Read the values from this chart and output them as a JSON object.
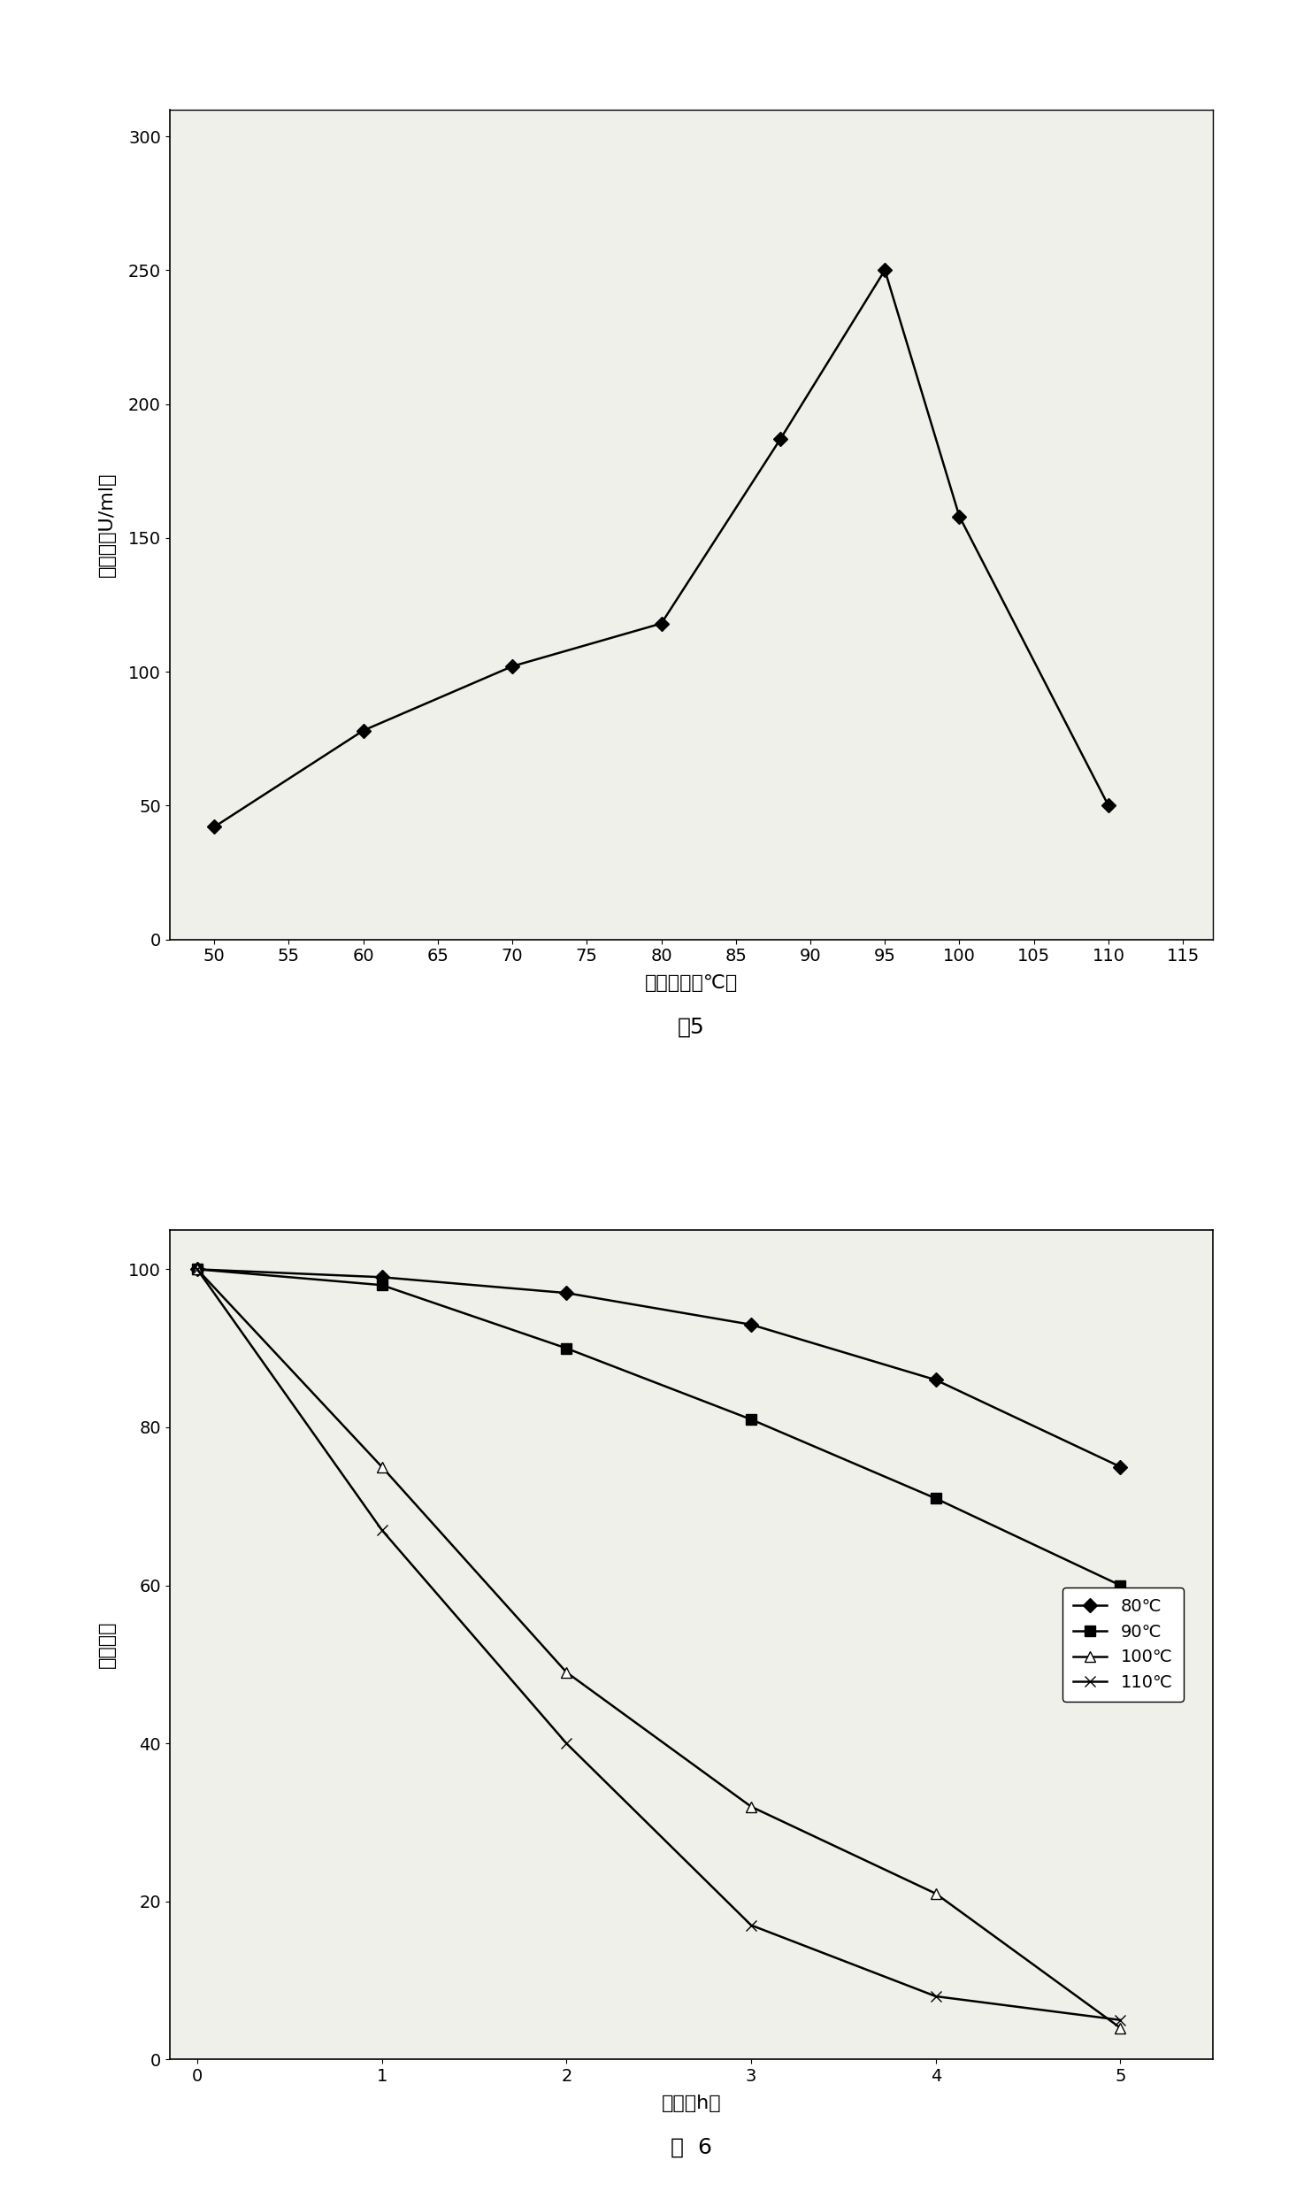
{
  "fig5": {
    "title": "图5",
    "x": [
      50,
      60,
      70,
      80,
      88,
      95,
      100,
      110
    ],
    "y": [
      42,
      78,
      102,
      118,
      187,
      250,
      158,
      50
    ],
    "xlabel": "作用温度（℃）",
    "ylabel": "酶活力（U/ml）",
    "xlim": [
      47,
      117
    ],
    "ylim": [
      0,
      310
    ],
    "xticks": [
      50,
      55,
      60,
      65,
      70,
      75,
      80,
      85,
      90,
      95,
      100,
      105,
      110,
      115
    ],
    "yticks": [
      0,
      50,
      100,
      150,
      200,
      250,
      300
    ],
    "marker": "D",
    "markersize": 8,
    "color": "black",
    "linewidth": 1.8
  },
  "fig6": {
    "title": "图  6",
    "xlabel": "时间（h）",
    "ylabel": "相对酶活",
    "xlim": [
      -0.15,
      5.5
    ],
    "ylim": [
      0,
      105
    ],
    "xticks": [
      0,
      1,
      2,
      3,
      4,
      5
    ],
    "yticks": [
      0,
      20,
      40,
      60,
      80,
      100
    ],
    "series": [
      {
        "label": "80℃",
        "x": [
          0,
          1,
          2,
          3,
          4,
          5
        ],
        "y": [
          100,
          99,
          97,
          93,
          86,
          75
        ],
        "marker": "D",
        "linestyle": "-",
        "color": "black",
        "markersize": 8,
        "markerfacecolor": "black"
      },
      {
        "label": "90℃",
        "x": [
          0,
          1,
          2,
          3,
          4,
          5
        ],
        "y": [
          100,
          98,
          90,
          81,
          71,
          60
        ],
        "marker": "s",
        "linestyle": "-",
        "color": "black",
        "markersize": 8,
        "markerfacecolor": "black"
      },
      {
        "label": "100℃",
        "x": [
          0,
          1,
          2,
          3,
          4,
          5
        ],
        "y": [
          100,
          75,
          49,
          32,
          21,
          4
        ],
        "marker": "^",
        "linestyle": "-",
        "color": "black",
        "markersize": 9,
        "markerfacecolor": "white"
      },
      {
        "label": "110℃",
        "x": [
          0,
          1,
          2,
          3,
          4,
          5
        ],
        "y": [
          100,
          67,
          40,
          17,
          8,
          5
        ],
        "marker": "x",
        "linestyle": "-",
        "color": "black",
        "markersize": 9,
        "markerfacecolor": "white"
      }
    ]
  },
  "plot_bg": "#f0f0eb",
  "fig_bg": "white",
  "font_size_label": 16,
  "font_size_tick": 14,
  "font_size_title": 18,
  "font_size_legend": 14
}
